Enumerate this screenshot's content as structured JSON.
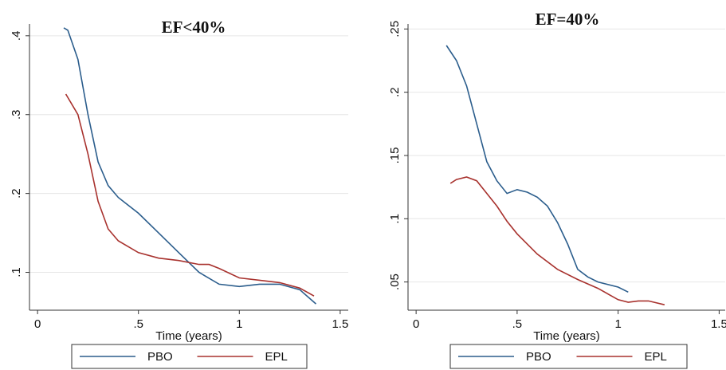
{
  "chart_data": [
    {
      "type": "line",
      "title": "EF<40%",
      "xlabel": "Time (years)",
      "grid": true,
      "xlim": [
        -0.04,
        1.54
      ],
      "ylim": [
        0.052,
        0.415
      ],
      "xticks": [
        0,
        {
          "value": 0.5,
          "label": ".5"
        },
        1,
        1.5
      ],
      "yticks": [
        {
          "value": 0.1,
          "label": ".1"
        },
        {
          "value": 0.2,
          "label": ".2"
        },
        {
          "value": 0.3,
          "label": ".3"
        },
        {
          "value": 0.4,
          "label": ".4"
        }
      ],
      "series": [
        {
          "name": "PBO",
          "color": "#2b5d8c",
          "x": [
            0.13,
            0.15,
            0.2,
            0.25,
            0.3,
            0.35,
            0.4,
            0.5,
            0.6,
            0.7,
            0.8,
            0.9,
            1.0,
            1.1,
            1.2,
            1.3,
            1.38
          ],
          "values": [
            0.41,
            0.407,
            0.37,
            0.3,
            0.24,
            0.21,
            0.195,
            0.175,
            0.15,
            0.125,
            0.1,
            0.085,
            0.082,
            0.085,
            0.085,
            0.078,
            0.06
          ]
        },
        {
          "name": "EPL",
          "color": "#a8322e",
          "x": [
            0.14,
            0.2,
            0.25,
            0.3,
            0.35,
            0.4,
            0.5,
            0.6,
            0.7,
            0.8,
            0.85,
            0.9,
            1.0,
            1.1,
            1.2,
            1.3,
            1.37
          ],
          "values": [
            0.326,
            0.3,
            0.25,
            0.19,
            0.155,
            0.14,
            0.125,
            0.118,
            0.115,
            0.11,
            0.11,
            0.105,
            0.093,
            0.09,
            0.087,
            0.08,
            0.07
          ]
        }
      ]
    },
    {
      "type": "line",
      "title": "EF=40%",
      "xlabel": "Time (years)",
      "grid": true,
      "xlim": [
        -0.04,
        1.53
      ],
      "ylim": [
        0.0277,
        0.254
      ],
      "xticks": [
        0,
        {
          "value": 0.5,
          "label": ".5"
        },
        1,
        1.5
      ],
      "yticks": [
        {
          "value": 0.05,
          "label": ".05"
        },
        {
          "value": 0.1,
          "label": ".1"
        },
        {
          "value": 0.15,
          "label": ".15"
        },
        {
          "value": 0.2,
          "label": ".2"
        },
        {
          "value": 0.25,
          "label": ".25"
        }
      ],
      "series": [
        {
          "name": "PBO",
          "color": "#2b5d8c",
          "x": [
            0.15,
            0.2,
            0.25,
            0.3,
            0.35,
            0.4,
            0.45,
            0.5,
            0.55,
            0.6,
            0.65,
            0.7,
            0.75,
            0.8,
            0.85,
            0.9,
            1.0,
            1.05
          ],
          "values": [
            0.237,
            0.225,
            0.205,
            0.175,
            0.145,
            0.13,
            0.12,
            0.123,
            0.121,
            0.117,
            0.11,
            0.097,
            0.08,
            0.06,
            0.054,
            0.05,
            0.046,
            0.042
          ]
        },
        {
          "name": "EPL",
          "color": "#a8322e",
          "x": [
            0.17,
            0.2,
            0.25,
            0.3,
            0.35,
            0.4,
            0.45,
            0.5,
            0.6,
            0.7,
            0.8,
            0.9,
            1.0,
            1.05,
            1.1,
            1.15,
            1.23
          ],
          "values": [
            0.128,
            0.131,
            0.133,
            0.13,
            0.12,
            0.11,
            0.098,
            0.088,
            0.072,
            0.06,
            0.052,
            0.045,
            0.036,
            0.034,
            0.035,
            0.035,
            0.032
          ]
        }
      ]
    }
  ]
}
